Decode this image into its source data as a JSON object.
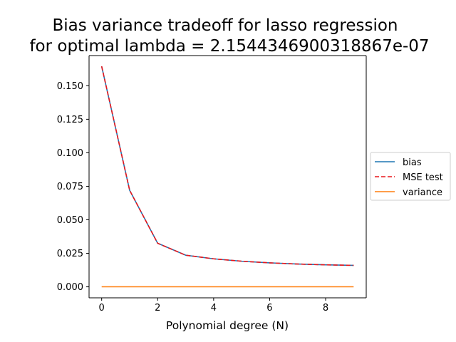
{
  "chart_data": {
    "type": "line",
    "title_line1": "Bias variance tradeoff for lasso regression",
    "title_line2": "for optimal lambda = 2.1544346900318867e-07",
    "xlabel": "Polynomial degree (N)",
    "ylabel": "",
    "xlim": [
      -0.45,
      9.45
    ],
    "ylim": [
      -0.0082,
      0.1725
    ],
    "xticks": [
      0,
      2,
      4,
      6,
      8
    ],
    "xtick_labels": [
      "0",
      "2",
      "4",
      "6",
      "8"
    ],
    "yticks": [
      0.0,
      0.025,
      0.05,
      0.075,
      0.1,
      0.125,
      0.15
    ],
    "ytick_labels": [
      "0.000",
      "0.025",
      "0.050",
      "0.075",
      "0.100",
      "0.125",
      "0.150"
    ],
    "grid": false,
    "legend_position": "center-right-outside",
    "x": [
      0,
      1,
      2,
      3,
      4,
      5,
      6,
      7,
      8,
      9
    ],
    "series": [
      {
        "name": "bias",
        "color": "#1f77b4",
        "style": "solid",
        "values": [
          0.1645,
          0.072,
          0.0325,
          0.0236,
          0.0209,
          0.0191,
          0.0179,
          0.017,
          0.0164,
          0.016
        ]
      },
      {
        "name": "MSE test",
        "color": "#e8171c",
        "style": "dashed",
        "values": [
          0.1645,
          0.072,
          0.0325,
          0.0236,
          0.0209,
          0.0191,
          0.0179,
          0.017,
          0.0164,
          0.016
        ]
      },
      {
        "name": "variance",
        "color": "#ff7f0e",
        "style": "solid",
        "values": [
          3e-05,
          3e-05,
          3e-05,
          3e-05,
          3e-05,
          3e-05,
          3e-05,
          3e-05,
          3e-05,
          3e-05
        ]
      }
    ]
  }
}
